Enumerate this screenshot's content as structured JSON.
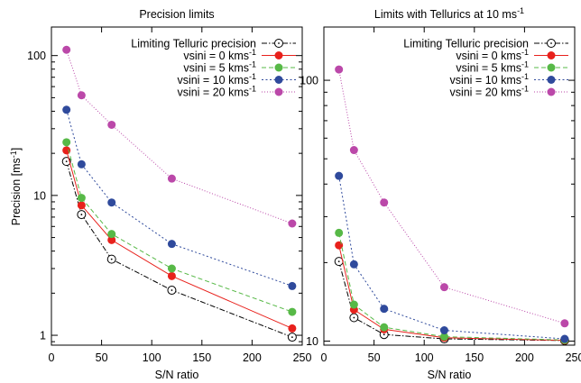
{
  "chart_data": [
    {
      "type": "line",
      "title": "Precision limits",
      "xlabel": "S/N ratio",
      "ylabel": "Precision [ms^-1]",
      "ylabel_main": "Precision [ms",
      "ylabel_sup": "-1",
      "ylabel_close": "]",
      "xlim": [
        0,
        250
      ],
      "ylim": [
        0.85,
        160
      ],
      "yscale": "log",
      "xticks": [
        0,
        50,
        100,
        150,
        200,
        250
      ],
      "xtick_labels": [
        "0",
        "50",
        "100",
        "150",
        "200",
        "250"
      ],
      "yticks": [
        1,
        10,
        100
      ],
      "ytick_labels": [
        "1",
        "10",
        "100"
      ],
      "legend_position": "top-right",
      "x": [
        15,
        30,
        60,
        120,
        240
      ],
      "series": [
        {
          "label_main": "Limiting Telluric precision",
          "label_sup": "",
          "color": "#000000",
          "dash": "6,2,1.5,2",
          "marker": "open-circle",
          "values": [
            17.5,
            7.3,
            3.5,
            2.1,
            0.97
          ]
        },
        {
          "label_main": "vsini = 0 kms",
          "label_sup": "-1",
          "color": "#e8211c",
          "dash": "",
          "marker": "filled-circle",
          "values": [
            21.0,
            8.5,
            4.8,
            2.65,
            1.12
          ]
        },
        {
          "label_main": "vsini = 5 kms",
          "label_sup": "-1",
          "color": "#57b947",
          "dash": "5,3",
          "marker": "filled-circle",
          "values": [
            24.0,
            9.6,
            5.3,
            3.0,
            1.47
          ]
        },
        {
          "label_main": "vsini = 10 kms",
          "label_sup": "-1",
          "color": "#2f4a9c",
          "dash": "2,2.5",
          "marker": "filled-circle",
          "values": [
            41.0,
            16.7,
            8.9,
            4.5,
            2.25
          ]
        },
        {
          "label_main": "vsini = 20 kms",
          "label_sup": "-1",
          "color": "#bb48a9",
          "dash": "1,2",
          "marker": "filled-circle",
          "values": [
            110.0,
            52.0,
            32.0,
            13.2,
            6.3
          ]
        }
      ]
    },
    {
      "type": "line",
      "title": "Limits with Tellurics at 10 ms^-1",
      "title_main": "Limits with Tellurics at 10 ms",
      "title_sup": "-1",
      "xlabel": "S/N ratio",
      "xlim": [
        0,
        250
      ],
      "ylim": [
        9.65,
        160
      ],
      "yscale": "log",
      "xticks": [
        0,
        50,
        100,
        150,
        200,
        250
      ],
      "xtick_labels": [
        "0",
        "50",
        "100",
        "150",
        "200",
        "250"
      ],
      "yticks": [
        10,
        100
      ],
      "ytick_labels": [
        "10",
        "100"
      ],
      "legend_position": "top-right",
      "x": [
        15,
        30,
        60,
        120,
        240
      ],
      "series": [
        {
          "label_main": "Limiting Telluric precision",
          "label_sup": "",
          "color": "#000000",
          "dash": "6,2,1.5,2",
          "marker": "open-circle",
          "values": [
            20.2,
            12.3,
            10.6,
            10.2,
            10.05
          ]
        },
        {
          "label_main": "vsini = 0 kms",
          "label_sup": "-1",
          "color": "#e8211c",
          "dash": "",
          "marker": "filled-circle",
          "values": [
            23.3,
            13.2,
            11.1,
            10.3,
            10.06
          ]
        },
        {
          "label_main": "vsini = 5 kms",
          "label_sup": "-1",
          "color": "#57b947",
          "dash": "5,3",
          "marker": "filled-circle",
          "values": [
            26.0,
            13.8,
            11.3,
            10.4,
            10.1
          ]
        },
        {
          "label_main": "vsini = 10 kms",
          "label_sup": "-1",
          "color": "#2f4a9c",
          "dash": "2,2.5",
          "marker": "filled-circle",
          "values": [
            43.0,
            19.7,
            13.3,
            11.0,
            10.2
          ]
        },
        {
          "label_main": "vsini = 20 kms",
          "label_sup": "-1",
          "color": "#bb48a9",
          "dash": "1,2",
          "marker": "filled-circle",
          "values": [
            110.0,
            54.0,
            34.0,
            16.1,
            11.7
          ]
        }
      ]
    }
  ]
}
